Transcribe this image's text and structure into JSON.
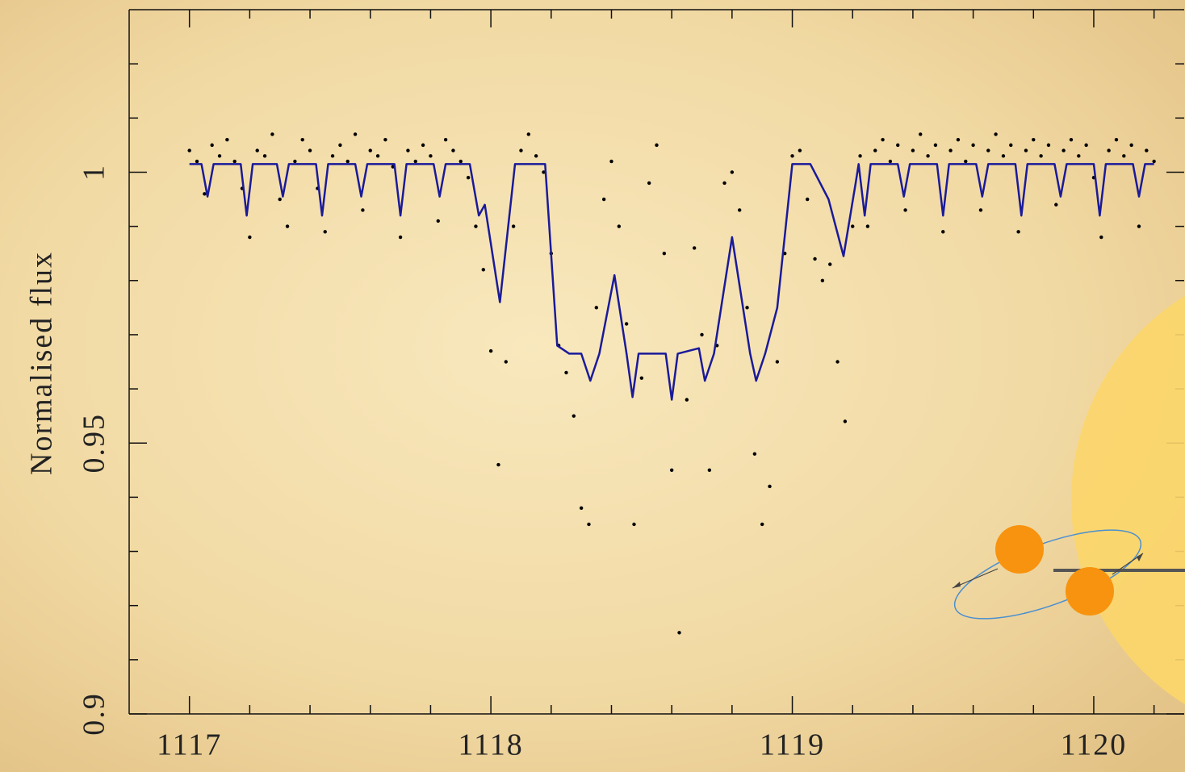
{
  "chart_data": {
    "type": "scatter",
    "ylabel": "Normalised flux",
    "xlim": [
      1116.8,
      1120.3
    ],
    "ylim": [
      0.9,
      1.03
    ],
    "xticks": [
      1117,
      1118,
      1119,
      1120
    ],
    "yticks": [
      0.9,
      0.95,
      1
    ],
    "xminor_ticks": [
      1117.2,
      1117.4,
      1117.6,
      1117.8,
      1118.2,
      1118.4,
      1118.6,
      1118.8,
      1119.2,
      1119.4,
      1119.6,
      1119.8,
      1120.2
    ],
    "yminor_ticks": [
      0.91,
      0.92,
      0.93,
      0.94,
      0.96,
      0.97,
      0.98,
      0.99,
      1.01,
      1.02
    ],
    "series": [
      {
        "type": "scatter",
        "color": "#000000",
        "x": [
          1117.0,
          1117.025,
          1117.05,
          1117.075,
          1117.1,
          1117.125,
          1117.15,
          1117.175,
          1117.2,
          1117.225,
          1117.25,
          1117.275,
          1117.3,
          1117.325,
          1117.35,
          1117.375,
          1117.4,
          1117.425,
          1117.45,
          1117.475,
          1117.5,
          1117.525,
          1117.55,
          1117.575,
          1117.6,
          1117.625,
          1117.65,
          1117.675,
          1117.7,
          1117.725,
          1117.75,
          1117.775,
          1117.8,
          1117.825,
          1117.85,
          1117.875,
          1117.9,
          1117.925,
          1117.95,
          1117.975,
          1118.0,
          1118.025,
          1118.05,
          1118.075,
          1118.1,
          1118.125,
          1118.15,
          1118.175,
          1118.2,
          1118.225,
          1118.25,
          1118.275,
          1118.3,
          1118.325,
          1118.35,
          1118.375,
          1118.4,
          1118.425,
          1118.45,
          1118.475,
          1118.5,
          1118.525,
          1118.55,
          1118.575,
          1118.6,
          1118.625,
          1118.65,
          1118.675,
          1118.7,
          1118.725,
          1118.75,
          1118.775,
          1118.8,
          1118.825,
          1118.85,
          1118.875,
          1118.9,
          1118.925,
          1118.95,
          1118.975,
          1119.0,
          1119.025,
          1119.05,
          1119.075,
          1119.1,
          1119.125,
          1119.15,
          1119.175,
          1119.2,
          1119.225,
          1119.25,
          1119.275,
          1119.3,
          1119.325,
          1119.35,
          1119.375,
          1119.4,
          1119.425,
          1119.45,
          1119.475,
          1119.5,
          1119.525,
          1119.55,
          1119.575,
          1119.6,
          1119.625,
          1119.65,
          1119.675,
          1119.7,
          1119.725,
          1119.75,
          1119.775,
          1119.8,
          1119.825,
          1119.85,
          1119.875,
          1119.9,
          1119.925,
          1119.95,
          1119.975,
          1120.0,
          1120.025,
          1120.05,
          1120.075,
          1120.1,
          1120.125,
          1120.15,
          1120.175,
          1120.2
        ],
        "values": [
          1.004,
          1.002,
          0.996,
          1.005,
          1.003,
          1.006,
          1.002,
          0.997,
          0.988,
          1.004,
          1.003,
          1.007,
          0.995,
          0.99,
          1.002,
          1.006,
          1.004,
          0.997,
          0.989,
          1.003,
          1.005,
          1.002,
          1.007,
          0.993,
          1.004,
          1.003,
          1.006,
          1.001,
          0.988,
          1.004,
          1.002,
          1.005,
          1.003,
          0.991,
          1.006,
          1.004,
          1.002,
          0.999,
          0.99,
          0.982,
          0.967,
          0.946,
          0.965,
          0.99,
          1.004,
          1.007,
          1.003,
          1.0,
          0.985,
          0.968,
          0.963,
          0.955,
          0.938,
          0.935,
          0.975,
          0.995,
          1.002,
          0.99,
          0.972,
          0.935,
          0.962,
          0.998,
          1.005,
          0.985,
          0.945,
          0.915,
          0.958,
          0.986,
          0.97,
          0.945,
          0.968,
          0.998,
          1.0,
          0.993,
          0.975,
          0.948,
          0.935,
          0.942,
          0.965,
          0.985,
          1.003,
          1.004,
          0.995,
          0.984,
          0.98,
          0.983,
          0.965,
          0.954,
          0.99,
          1.003,
          0.99,
          1.004,
          1.006,
          1.002,
          1.005,
          0.993,
          1.004,
          1.007,
          1.003,
          1.005,
          0.989,
          1.004,
          1.006,
          1.002,
          1.005,
          0.993,
          1.004,
          1.007,
          1.003,
          1.005,
          0.989,
          1.004,
          1.006,
          1.003,
          1.005,
          0.994,
          1.004,
          1.006,
          1.003,
          1.005,
          0.999,
          0.988,
          1.004,
          1.006,
          1.003,
          1.005,
          0.99,
          1.004,
          1.002
        ]
      },
      {
        "type": "line",
        "color": "#1a1a9a",
        "x": [
          1117.0,
          1117.04,
          1117.06,
          1117.08,
          1117.17,
          1117.19,
          1117.21,
          1117.29,
          1117.31,
          1117.33,
          1117.42,
          1117.44,
          1117.46,
          1117.55,
          1117.57,
          1117.59,
          1117.68,
          1117.7,
          1117.72,
          1117.81,
          1117.83,
          1117.85,
          1117.93,
          1117.96,
          1117.98,
          1118.03,
          1118.08,
          1118.18,
          1118.22,
          1118.26,
          1118.3,
          1118.33,
          1118.36,
          1118.41,
          1118.45,
          1118.47,
          1118.49,
          1118.58,
          1118.6,
          1118.62,
          1118.69,
          1118.71,
          1118.74,
          1118.8,
          1118.86,
          1118.88,
          1118.91,
          1118.95,
          1119.0,
          1119.06,
          1119.12,
          1119.17,
          1119.21,
          1119.22,
          1119.24,
          1119.26,
          1119.35,
          1119.37,
          1119.39,
          1119.48,
          1119.5,
          1119.52,
          1119.61,
          1119.63,
          1119.65,
          1119.74,
          1119.76,
          1119.78,
          1119.87,
          1119.89,
          1119.91,
          1120.0,
          1120.02,
          1120.04,
          1120.13,
          1120.15,
          1120.17,
          1120.2
        ],
        "values": [
          1.0015,
          1.0015,
          0.9955,
          1.0015,
          1.0015,
          0.992,
          1.0015,
          1.0015,
          0.9955,
          1.0015,
          1.0015,
          0.992,
          1.0015,
          1.0015,
          0.9955,
          1.0015,
          1.0015,
          0.992,
          1.0015,
          1.0015,
          0.9955,
          1.0015,
          1.0015,
          0.992,
          0.994,
          0.976,
          1.0015,
          1.0015,
          0.968,
          0.9665,
          0.9665,
          0.9615,
          0.9665,
          0.981,
          0.9665,
          0.9585,
          0.9665,
          0.9665,
          0.958,
          0.9665,
          0.9675,
          0.9615,
          0.9665,
          0.988,
          0.9665,
          0.9615,
          0.9665,
          0.975,
          1.0015,
          1.0015,
          0.995,
          0.9845,
          0.998,
          1.0015,
          0.992,
          1.0015,
          1.0015,
          0.9955,
          1.0015,
          1.0015,
          0.992,
          1.0015,
          1.0015,
          0.9955,
          1.0015,
          1.0015,
          0.992,
          1.0015,
          1.0015,
          0.9955,
          1.0015,
          1.0015,
          0.992,
          1.0015,
          1.0015,
          0.9955,
          1.0015,
          1.0015
        ]
      }
    ]
  }
}
